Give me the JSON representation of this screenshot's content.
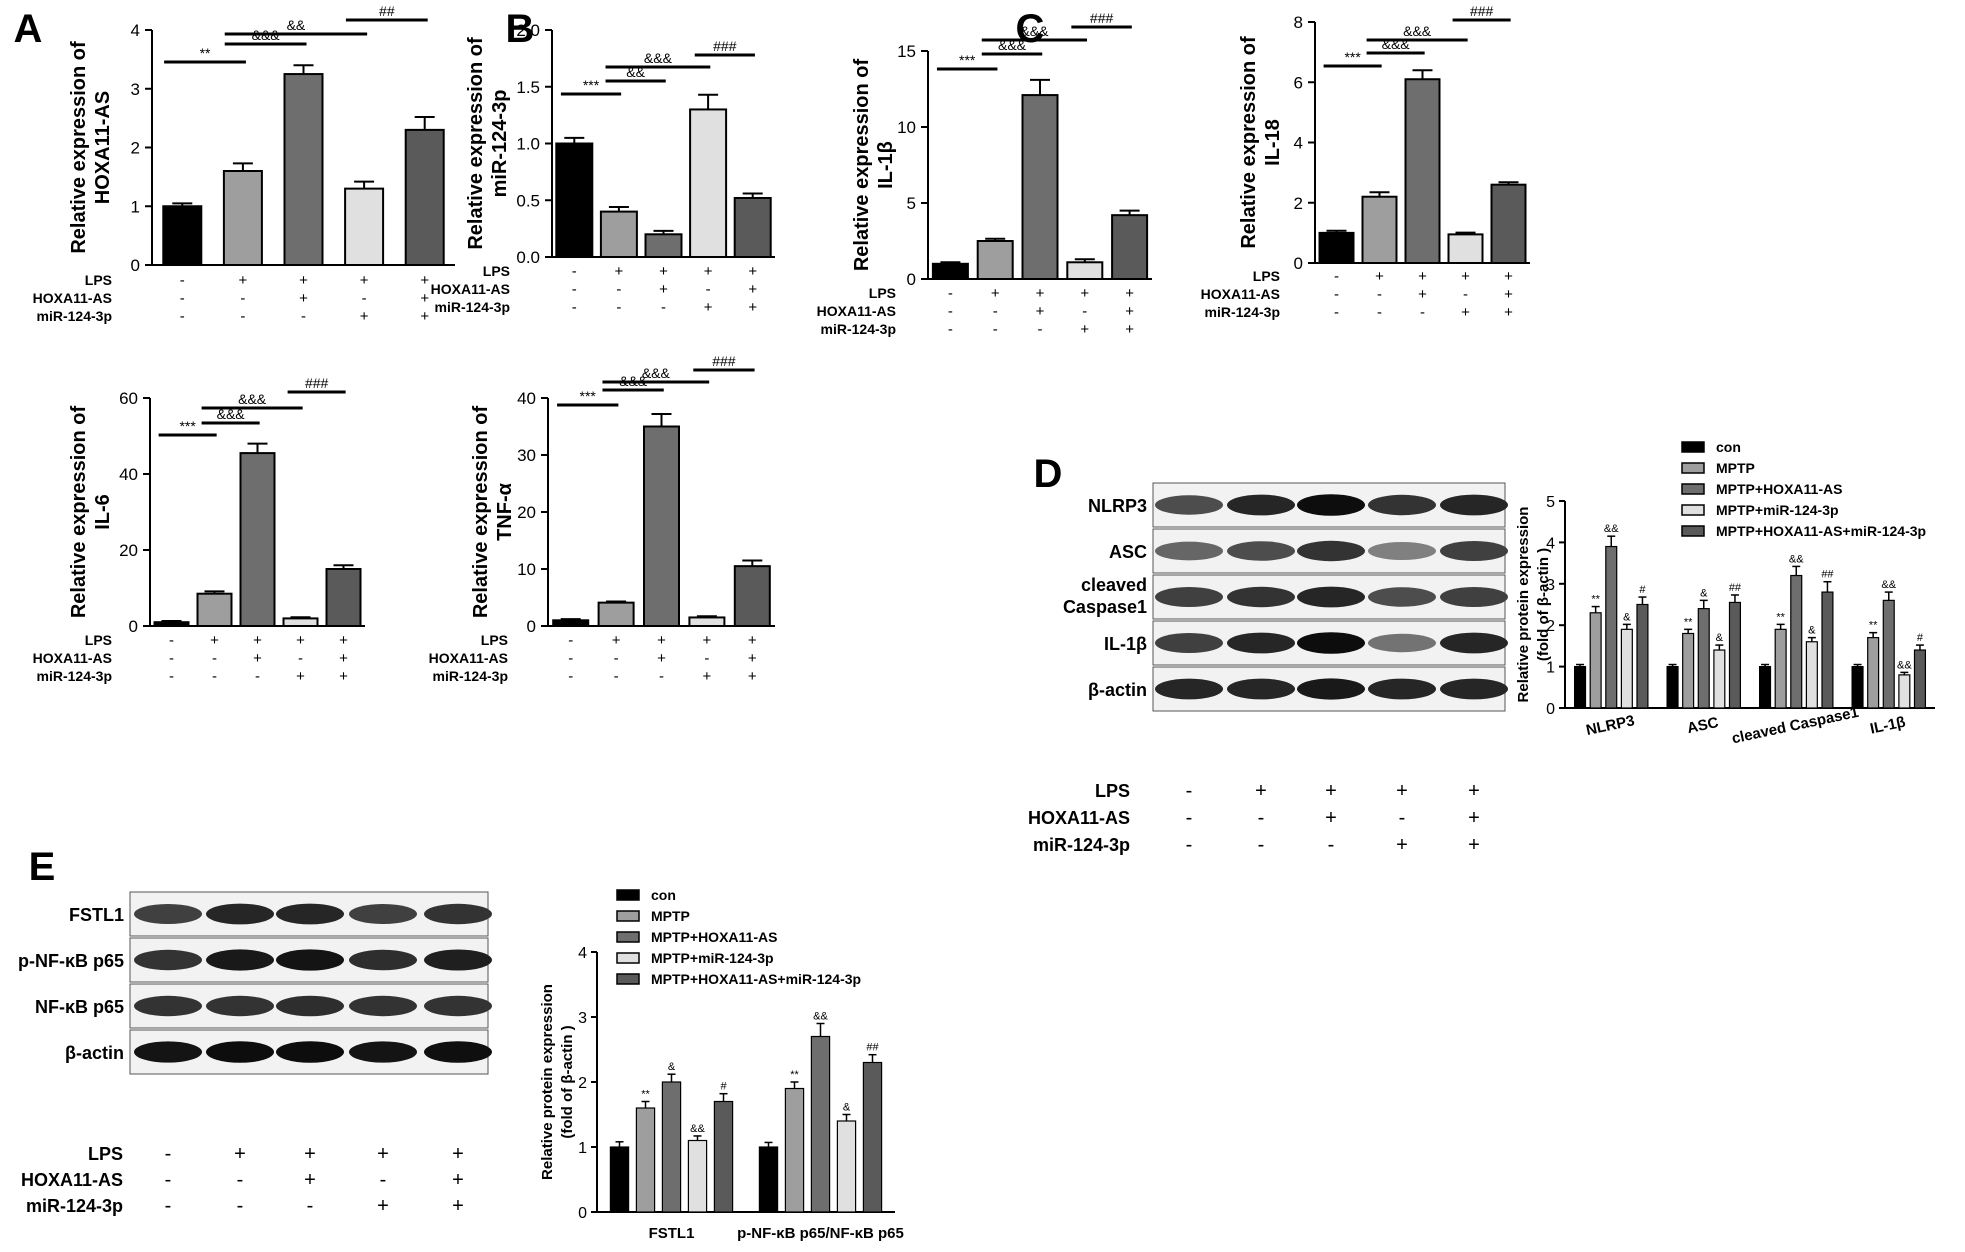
{
  "panel_letters": [
    "A",
    "B",
    "C",
    "D",
    "E"
  ],
  "colors": {
    "c0": "#000000",
    "c1": "#9e9e9e",
    "c2": "#6e6e6e",
    "c3": "#e0e0e0",
    "c4": "#5a5a5a"
  },
  "chart_data": [
    {
      "id": "A",
      "type": "bar",
      "ylabel": "Relative expression of HOXA11-AS",
      "ylim": [
        0,
        4
      ],
      "yticks": [
        "0",
        "1",
        "2",
        "3",
        "4"
      ],
      "values": [
        1.0,
        1.6,
        3.25,
        1.3,
        2.3
      ],
      "errors": [
        0.05,
        0.13,
        0.15,
        0.12,
        0.22
      ],
      "conditions": [
        {
          "label": "LPS",
          "signs": [
            "-",
            "+",
            "+",
            "+",
            "+"
          ]
        },
        {
          "label": "HOXA11-AS",
          "signs": [
            "-",
            "-",
            "+",
            "-",
            "+"
          ]
        },
        {
          "label": "miR-124-3p",
          "signs": [
            "-",
            "-",
            "-",
            "+",
            "+"
          ]
        }
      ],
      "sig": [
        {
          "from": 0,
          "to": 1,
          "label": "**"
        },
        {
          "from": 1,
          "to": 2,
          "label": "&&&"
        },
        {
          "from": 1,
          "to": 3,
          "label": "&&"
        },
        {
          "from": 3,
          "to": 4,
          "label": "##"
        }
      ]
    },
    {
      "id": "B",
      "type": "bar",
      "ylabel": "Relative expression of miR-124-3p",
      "ylim": [
        0,
        2
      ],
      "yticks": [
        "0.0",
        "0.5",
        "1.0",
        "1.5",
        "2.0"
      ],
      "values": [
        1.0,
        0.4,
        0.2,
        1.3,
        0.52
      ],
      "errors": [
        0.05,
        0.04,
        0.03,
        0.13,
        0.04
      ],
      "conditions": [
        {
          "label": "LPS",
          "signs": [
            "-",
            "+",
            "+",
            "+",
            "+"
          ]
        },
        {
          "label": "HOXA11-AS",
          "signs": [
            "-",
            "-",
            "+",
            "-",
            "+"
          ]
        },
        {
          "label": "miR-124-3p",
          "signs": [
            "-",
            "-",
            "-",
            "+",
            "+"
          ]
        }
      ],
      "sig": [
        {
          "from": 0,
          "to": 1,
          "label": "***"
        },
        {
          "from": 1,
          "to": 2,
          "label": "&&"
        },
        {
          "from": 1,
          "to": 3,
          "label": "&&&"
        },
        {
          "from": 3,
          "to": 4,
          "label": "###"
        }
      ]
    },
    {
      "id": "C",
      "type": "bar",
      "ylabel": "Relative expression of IL-1β",
      "ylim": [
        0,
        15
      ],
      "yticks": [
        "0",
        "5",
        "10",
        "15"
      ],
      "values": [
        1.0,
        2.5,
        12.1,
        1.1,
        4.2
      ],
      "errors": [
        0.1,
        0.15,
        1.0,
        0.2,
        0.3
      ],
      "conditions": [
        {
          "label": "LPS",
          "signs": [
            "-",
            "+",
            "+",
            "+",
            "+"
          ]
        },
        {
          "label": "HOXA11-AS",
          "signs": [
            "-",
            "-",
            "+",
            "-",
            "+"
          ]
        },
        {
          "label": "miR-124-3p",
          "signs": [
            "-",
            "-",
            "-",
            "+",
            "+"
          ]
        }
      ],
      "sig": [
        {
          "from": 0,
          "to": 1,
          "label": "***"
        },
        {
          "from": 1,
          "to": 2,
          "label": "&&&"
        },
        {
          "from": 1,
          "to": 3,
          "label": "&&&"
        },
        {
          "from": 3,
          "to": 4,
          "label": "###"
        }
      ]
    },
    {
      "id": "C2",
      "type": "bar",
      "ylabel": "Relative expression of IL-18",
      "ylim": [
        0,
        8
      ],
      "yticks": [
        "0",
        "2",
        "4",
        "6",
        "8"
      ],
      "values": [
        1.0,
        2.2,
        6.1,
        0.95,
        2.6
      ],
      "errors": [
        0.07,
        0.15,
        0.3,
        0.06,
        0.08
      ],
      "conditions": [
        {
          "label": "LPS",
          "signs": [
            "-",
            "+",
            "+",
            "+",
            "+"
          ]
        },
        {
          "label": "HOXA11-AS",
          "signs": [
            "-",
            "-",
            "+",
            "-",
            "+"
          ]
        },
        {
          "label": "miR-124-3p",
          "signs": [
            "-",
            "-",
            "-",
            "+",
            "+"
          ]
        }
      ],
      "sig": [
        {
          "from": 0,
          "to": 1,
          "label": "***"
        },
        {
          "from": 1,
          "to": 2,
          "label": "&&&"
        },
        {
          "from": 1,
          "to": 3,
          "label": "&&&"
        },
        {
          "from": 3,
          "to": 4,
          "label": "###"
        }
      ]
    },
    {
      "id": "A2",
      "type": "bar",
      "ylabel": "Relative expression of IL-6",
      "ylim": [
        0,
        60
      ],
      "yticks": [
        "0",
        "20",
        "40",
        "60"
      ],
      "values": [
        1.0,
        8.5,
        45.5,
        2.0,
        15.0
      ],
      "errors": [
        0.3,
        0.6,
        2.5,
        0.3,
        1.0
      ],
      "conditions": [
        {
          "label": "LPS",
          "signs": [
            "-",
            "+",
            "+",
            "+",
            "+"
          ]
        },
        {
          "label": "HOXA11-AS",
          "signs": [
            "-",
            "-",
            "+",
            "-",
            "+"
          ]
        },
        {
          "label": "miR-124-3p",
          "signs": [
            "-",
            "-",
            "-",
            "+",
            "+"
          ]
        }
      ],
      "sig": [
        {
          "from": 0,
          "to": 1,
          "label": "***"
        },
        {
          "from": 1,
          "to": 2,
          "label": "&&&"
        },
        {
          "from": 1,
          "to": 3,
          "label": "&&&"
        },
        {
          "from": 3,
          "to": 4,
          "label": "###"
        }
      ]
    },
    {
      "id": "B2",
      "type": "bar",
      "ylabel": "Relative expression of TNF-α",
      "ylim": [
        0,
        40
      ],
      "yticks": [
        "0",
        "10",
        "20",
        "30",
        "40"
      ],
      "values": [
        1.0,
        4.1,
        35.0,
        1.5,
        10.5
      ],
      "errors": [
        0.2,
        0.2,
        2.2,
        0.2,
        1.0
      ],
      "conditions": [
        {
          "label": "LPS",
          "signs": [
            "-",
            "+",
            "+",
            "+",
            "+"
          ]
        },
        {
          "label": "HOXA11-AS",
          "signs": [
            "-",
            "-",
            "+",
            "-",
            "+"
          ]
        },
        {
          "label": "miR-124-3p",
          "signs": [
            "-",
            "-",
            "-",
            "+",
            "+"
          ]
        }
      ],
      "sig": [
        {
          "from": 0,
          "to": 1,
          "label": "***"
        },
        {
          "from": 1,
          "to": 2,
          "label": "&&&"
        },
        {
          "from": 1,
          "to": 3,
          "label": "&&&"
        },
        {
          "from": 3,
          "to": 4,
          "label": "###"
        }
      ]
    },
    {
      "id": "D",
      "type": "bar",
      "ylabel": "Relative protein expression (fold of β-actin )",
      "ylim": [
        0,
        5
      ],
      "yticks": [
        "0",
        "1",
        "2",
        "3",
        "4",
        "5"
      ],
      "legend": [
        "con",
        "MPTP",
        "MPTP+HOXA11-AS",
        "MPTP+miR-124-3p",
        "MPTP+HOXA11-AS+miR-124-3p"
      ],
      "categories": [
        "NLRP3",
        "ASC",
        "cleaved Caspase1",
        "IL-1β"
      ],
      "series": [
        {
          "name": "con",
          "values": [
            1.0,
            1.0,
            1.0,
            1.0
          ],
          "errors": [
            0.05,
            0.05,
            0.05,
            0.05
          ],
          "marks": [
            "",
            "",
            "",
            ""
          ]
        },
        {
          "name": "MPTP",
          "values": [
            2.3,
            1.8,
            1.9,
            1.7
          ],
          "errors": [
            0.15,
            0.1,
            0.12,
            0.12
          ],
          "marks": [
            "**",
            "**",
            "**",
            "**"
          ]
        },
        {
          "name": "MPTP+HOXA11-AS",
          "values": [
            3.9,
            2.4,
            3.2,
            2.6
          ],
          "errors": [
            0.25,
            0.2,
            0.22,
            0.2
          ],
          "marks": [
            "&&",
            "&",
            "&&",
            "&&"
          ]
        },
        {
          "name": "MPTP+miR-124-3p",
          "values": [
            1.9,
            1.4,
            1.6,
            0.8
          ],
          "errors": [
            0.12,
            0.12,
            0.1,
            0.06
          ],
          "marks": [
            "&",
            "&",
            "&",
            "&&"
          ]
        },
        {
          "name": "MPTP+HOXA11-AS+miR-124-3p",
          "values": [
            2.5,
            2.55,
            2.8,
            1.4
          ],
          "errors": [
            0.18,
            0.18,
            0.25,
            0.12
          ],
          "marks": [
            "#",
            "##",
            "##",
            "#"
          ]
        }
      ]
    },
    {
      "id": "E",
      "type": "bar",
      "ylabel": "Relative protein expression (fold of β-actin )",
      "ylim": [
        0,
        4
      ],
      "yticks": [
        "0",
        "1",
        "2",
        "3",
        "4"
      ],
      "legend": [
        "con",
        "MPTP",
        "MPTP+HOXA11-AS",
        "MPTP+miR-124-3p",
        "MPTP+HOXA11-AS+miR-124-3p"
      ],
      "categories": [
        "FSTL1",
        "p-NF-κB p65/NF-κB p65"
      ],
      "series": [
        {
          "name": "con",
          "values": [
            1.0,
            1.0
          ],
          "errors": [
            0.08,
            0.07
          ],
          "marks": [
            "",
            ""
          ]
        },
        {
          "name": "MPTP",
          "values": [
            1.6,
            1.9
          ],
          "errors": [
            0.1,
            0.1
          ],
          "marks": [
            "**",
            "**"
          ]
        },
        {
          "name": "MPTP+HOXA11-AS",
          "values": [
            2.0,
            2.7
          ],
          "errors": [
            0.12,
            0.2
          ],
          "marks": [
            "&",
            "&&"
          ]
        },
        {
          "name": "MPTP+miR-124-3p",
          "values": [
            1.1,
            1.4
          ],
          "errors": [
            0.07,
            0.1
          ],
          "marks": [
            "&&",
            "&"
          ]
        },
        {
          "name": "MPTP+HOXA11-AS+miR-124-3p",
          "values": [
            1.7,
            2.3
          ],
          "errors": [
            0.12,
            0.12
          ],
          "marks": [
            "#",
            "##"
          ]
        }
      ]
    }
  ],
  "blots": [
    {
      "id": "D",
      "bands": [
        {
          "label": "NLRP3",
          "intensity": [
            0.7,
            0.85,
            0.95,
            0.8,
            0.85
          ]
        },
        {
          "label": "ASC",
          "intensity": [
            0.6,
            0.7,
            0.8,
            0.5,
            0.75
          ]
        },
        {
          "label": "cleaved Caspase1",
          "intensity": [
            0.75,
            0.8,
            0.85,
            0.7,
            0.75
          ]
        },
        {
          "label": "IL-1β",
          "intensity": [
            0.75,
            0.85,
            0.95,
            0.55,
            0.85
          ]
        },
        {
          "label": "β-actin",
          "intensity": [
            0.85,
            0.85,
            0.9,
            0.85,
            0.85
          ]
        }
      ],
      "conditions": [
        {
          "label": "LPS",
          "signs": [
            "-",
            "+",
            "+",
            "+",
            "+"
          ]
        },
        {
          "label": "HOXA11-AS",
          "signs": [
            "-",
            "-",
            "+",
            "-",
            "+"
          ]
        },
        {
          "label": "miR-124-3p",
          "signs": [
            "-",
            "-",
            "-",
            "+",
            "+"
          ]
        }
      ]
    },
    {
      "id": "E",
      "bands": [
        {
          "label": "FSTL1",
          "intensity": [
            0.75,
            0.85,
            0.85,
            0.75,
            0.8
          ]
        },
        {
          "label": "p-NF-κB p65",
          "intensity": [
            0.8,
            0.9,
            0.92,
            0.82,
            0.88
          ]
        },
        {
          "label": "NF-κB p65",
          "intensity": [
            0.8,
            0.8,
            0.82,
            0.8,
            0.8
          ]
        },
        {
          "label": "β-actin",
          "intensity": [
            0.92,
            0.95,
            0.95,
            0.92,
            0.94
          ]
        }
      ],
      "conditions": [
        {
          "label": "LPS",
          "signs": [
            "-",
            "+",
            "+",
            "+",
            "+"
          ]
        },
        {
          "label": "HOXA11-AS",
          "signs": [
            "-",
            "-",
            "+",
            "-",
            "+"
          ]
        },
        {
          "label": "miR-124-3p",
          "signs": [
            "-",
            "-",
            "-",
            "+",
            "+"
          ]
        }
      ]
    }
  ]
}
